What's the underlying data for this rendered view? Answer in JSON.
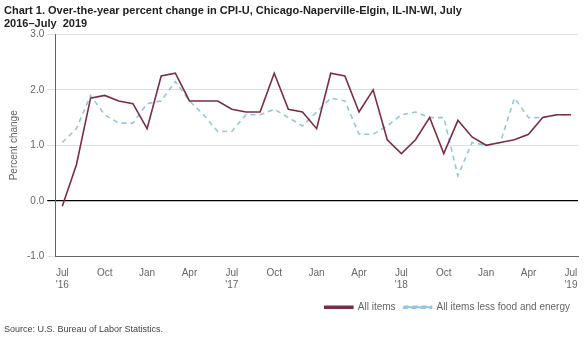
{
  "chart_data": {
    "type": "line",
    "title": "Chart 1. Over-the-year percent change in CPI-U, Chicago-Naperville-Elgin, IL-IN-WI, July\n2016–July  2019",
    "ylabel": "Percent change",
    "source": "Source: U.S. Bureau of Labor Statistics.",
    "categories": [
      "Jul\n'16",
      null,
      null,
      "Oct",
      null,
      null,
      "Jan",
      null,
      null,
      "Apr",
      null,
      null,
      "Jul\n'17",
      null,
      null,
      "Oct",
      null,
      null,
      "Jan",
      null,
      null,
      "Apr",
      null,
      null,
      "Jul\n'18",
      null,
      null,
      "Oct",
      null,
      null,
      "Jan",
      null,
      null,
      "Apr",
      null,
      null,
      "Jul\n'19"
    ],
    "series": [
      {
        "name": "All items",
        "color": "#7b2d47",
        "line_style": "solid",
        "values": [
          -0.1,
          0.65,
          1.85,
          1.9,
          1.8,
          1.75,
          1.3,
          2.25,
          2.3,
          1.8,
          1.8,
          1.8,
          1.65,
          1.6,
          1.6,
          2.3,
          1.65,
          1.6,
          1.3,
          2.3,
          2.25,
          1.6,
          2.0,
          1.1,
          0.85,
          1.1,
          1.5,
          0.85,
          1.45,
          1.15,
          1.0,
          1.05,
          1.1,
          1.2,
          1.5,
          1.55,
          1.55
        ]
      },
      {
        "name": "All items less food and energy",
        "color": "#93c6e0",
        "line_style": "dashed",
        "values": [
          1.05,
          1.3,
          1.9,
          1.55,
          1.4,
          1.4,
          1.75,
          1.8,
          2.15,
          1.8,
          1.55,
          1.25,
          1.25,
          1.55,
          1.55,
          1.65,
          1.5,
          1.35,
          1.6,
          1.85,
          1.8,
          1.2,
          1.2,
          1.35,
          1.55,
          1.6,
          1.5,
          1.5,
          0.45,
          1.05,
          1.0,
          1.05,
          1.85,
          1.5,
          1.5,
          1.55,
          1.55
        ]
      }
    ],
    "ylim": [
      -1.0,
      3.0
    ],
    "yticks": [
      {
        "value": -1.0,
        "label": "-1.0"
      },
      {
        "value": 0.0,
        "label": "0.0"
      },
      {
        "value": 1.0,
        "label": "1.0"
      },
      {
        "value": 2.0,
        "label": "2.0"
      },
      {
        "value": 3.0,
        "label": "3.0"
      }
    ],
    "grid": true,
    "legend": "lower right"
  }
}
